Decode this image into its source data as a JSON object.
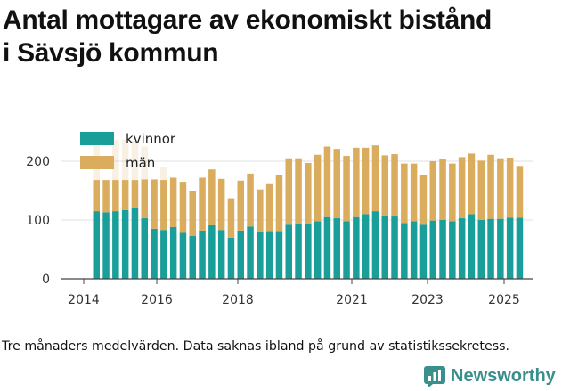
{
  "title_line1": "Antal mottagare av ekonomiskt bistånd",
  "title_line2": "i Sävsjö kommun",
  "note": "Tre månaders medelvärden. Data saknas ibland på grund av statistikssekretess.",
  "brand": {
    "name": "Newsworthy",
    "color": "#3a8f8c",
    "icon": "newsworthy-logo-icon"
  },
  "colors": {
    "kvinnor": "#1a9e9a",
    "man": "#d9ac5e",
    "grid": "#e0e0e0",
    "axis": "#444444"
  },
  "chart_data": {
    "type": "bar",
    "stacked": true,
    "legend_position": "top-left",
    "grid": true,
    "xlabel": "",
    "ylabel": "",
    "ylim": [
      0,
      250
    ],
    "y_ticks": [
      "0",
      "100",
      "200"
    ],
    "x_ticks": [
      "2014",
      "2016",
      "2018",
      "2021",
      "2023",
      "2025"
    ],
    "series": [
      {
        "name": "kvinnor",
        "values": [
          115,
          113,
          115,
          117,
          120,
          103,
          85,
          83,
          88,
          78,
          73,
          82,
          91,
          83,
          70,
          82,
          89,
          79,
          81,
          81,
          92,
          93,
          93,
          98,
          105,
          103,
          98,
          105,
          110,
          115,
          108,
          106,
          95,
          98,
          92,
          99,
          100,
          98,
          103,
          110,
          100,
          102,
          102,
          104,
          104
        ]
      },
      {
        "name": "män",
        "values": [
          53,
          55,
          53,
          51,
          48,
          66,
          84,
          85,
          84,
          87,
          77,
          90,
          95,
          87,
          67,
          85,
          90,
          73,
          80,
          95,
          113,
          112,
          104,
          113,
          120,
          118,
          111,
          118,
          113,
          112,
          102,
          106,
          101,
          98,
          84,
          101,
          104,
          98,
          104,
          103,
          101,
          109,
          103,
          102,
          88
        ]
      }
    ],
    "faded_total_bars": [
      {
        "index": 0,
        "total": 230
      },
      {
        "index": 2,
        "total": 236
      },
      {
        "index": 3,
        "total": 237
      },
      {
        "index": 4,
        "total": 235
      },
      {
        "index": 5,
        "total": 225
      },
      {
        "index": 7,
        "total": 190
      },
      {
        "index": 10,
        "total": 150
      }
    ]
  }
}
